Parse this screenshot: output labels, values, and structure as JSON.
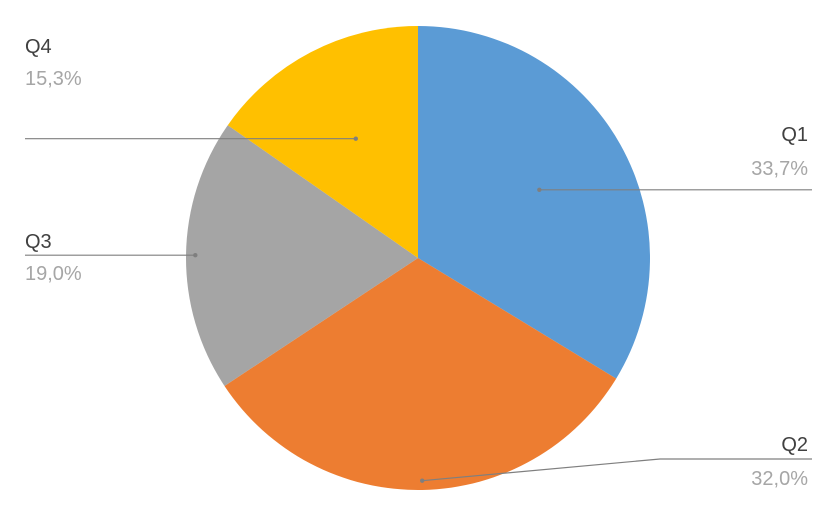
{
  "chart_data": {
    "type": "pie",
    "categories": [
      "Q1",
      "Q2",
      "Q3",
      "Q4"
    ],
    "values": [
      33.7,
      32.0,
      19.0,
      15.3
    ],
    "value_labels": [
      "33,7%",
      "32,0%",
      "19,0%",
      "15,3%"
    ],
    "colors": [
      "#5b9bd5",
      "#ed7d31",
      "#a5a5a5",
      "#ffc000"
    ],
    "start_angle": "12 o'clock",
    "direction": "clockwise",
    "legend": "none",
    "labels": "category name and percentage outside with leader lines"
  }
}
